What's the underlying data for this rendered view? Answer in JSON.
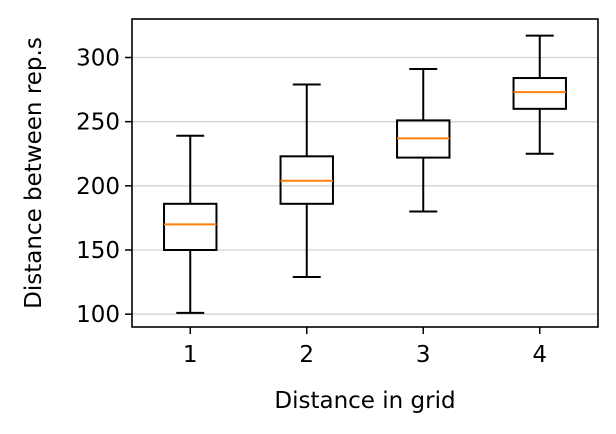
{
  "chart_data": {
    "type": "box",
    "xlabel": "Distance in grid",
    "ylabel": "Distance between rep.s",
    "categories": [
      "1",
      "2",
      "3",
      "4"
    ],
    "boxes": [
      {
        "category": "1",
        "whisker_low": 101,
        "q1": 150,
        "median": 170,
        "q3": 186,
        "whisker_high": 239
      },
      {
        "category": "2",
        "whisker_low": 129,
        "q1": 186,
        "median": 204,
        "q3": 223,
        "whisker_high": 279
      },
      {
        "category": "3",
        "whisker_low": 180,
        "q1": 222,
        "median": 237,
        "q3": 251,
        "whisker_high": 291
      },
      {
        "category": "4",
        "whisker_low": 225,
        "q1": 260,
        "median": 273,
        "q3": 284,
        "whisker_high": 317
      }
    ],
    "yticks": [
      100,
      150,
      200,
      250,
      300
    ],
    "ylim": [
      90,
      330
    ],
    "grid": "y",
    "colors": {
      "box": "#000000",
      "median": "#ff7f0e",
      "grid": "#d3d3d3",
      "axes": "#000000"
    }
  }
}
